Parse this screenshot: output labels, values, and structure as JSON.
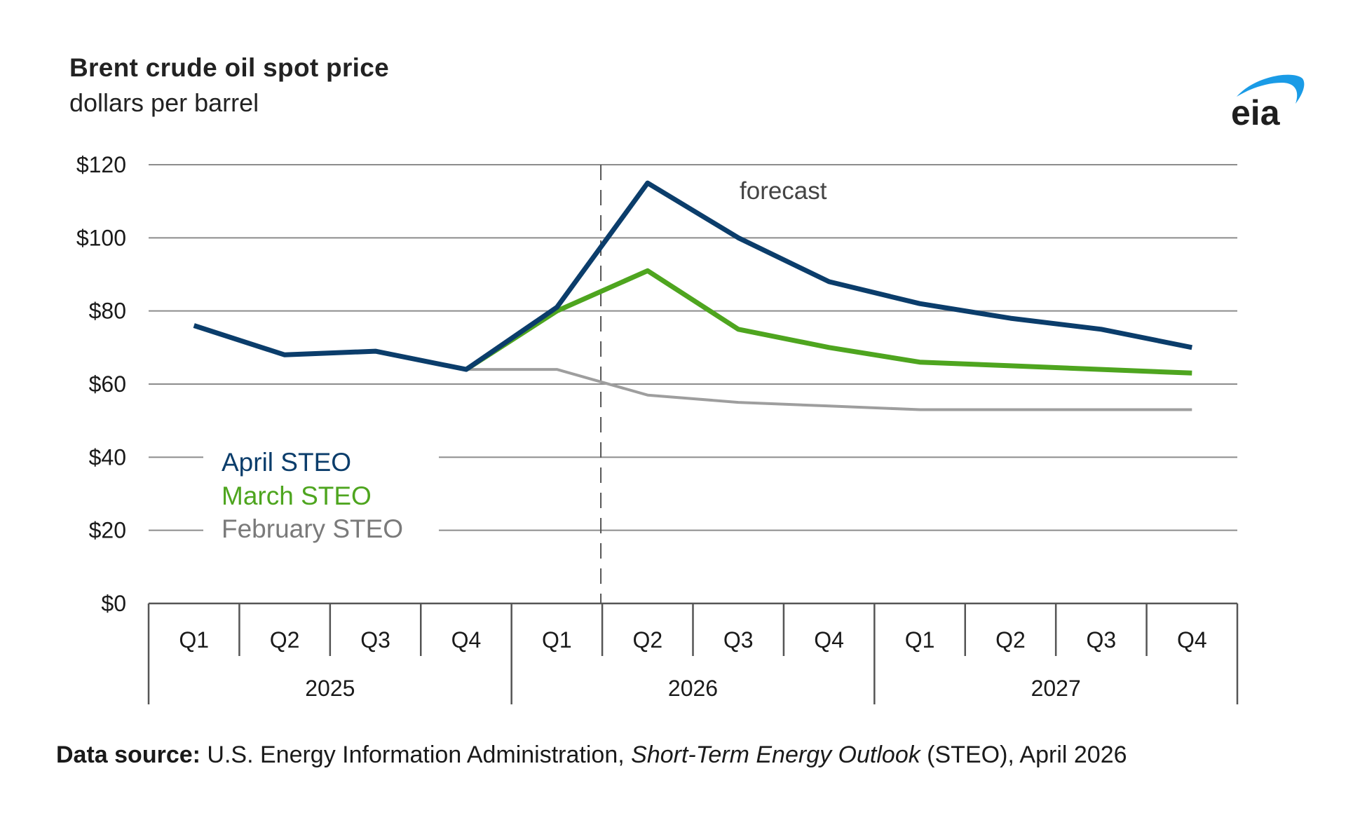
{
  "header": {
    "title": "Brent crude oil spot price",
    "subtitle": "dollars per barrel",
    "logo_text": "eia",
    "logo_colors": {
      "text": "#1f1f1f",
      "swoosh": "#1a9be6"
    }
  },
  "footer": {
    "source_label": "Data source:",
    "source_text_1": " U.S. Energy Information Administration, ",
    "source_italic": "Short-Term Energy Outlook",
    "source_text_2": " (STEO), April 2026"
  },
  "chart_data": {
    "type": "line",
    "title": "Brent crude oil spot price",
    "subtitle": "dollars per barrel",
    "xlabel": "",
    "ylabel": "dollars per barrel",
    "ylim": [
      0,
      120
    ],
    "yticks": [
      0,
      20,
      40,
      60,
      80,
      100,
      120
    ],
    "ytick_labels": [
      "$0",
      "$20",
      "$40",
      "$60",
      "$80",
      "$100",
      "$120"
    ],
    "grid": true,
    "categories": [
      "Q1",
      "Q2",
      "Q3",
      "Q4",
      "Q1",
      "Q2",
      "Q3",
      "Q4",
      "Q1",
      "Q2",
      "Q3",
      "Q4"
    ],
    "year_groups": [
      {
        "label": "2025",
        "quarters": 4
      },
      {
        "label": "2026",
        "quarters": 4
      },
      {
        "label": "2027",
        "quarters": 4
      }
    ],
    "forecast_divider_after_index": 4,
    "annotation": "forecast",
    "legend_position": "left-middle",
    "series": [
      {
        "name": "April STEO",
        "color": "#0b3d6b",
        "values": [
          76,
          68,
          69,
          64,
          81,
          115,
          100,
          88,
          82,
          78,
          75,
          70
        ]
      },
      {
        "name": "March STEO",
        "color": "#4ea51f",
        "values": [
          null,
          null,
          null,
          64,
          80,
          91,
          75,
          70,
          66,
          65,
          64,
          63
        ]
      },
      {
        "name": "February STEO",
        "color": "#7f7f7f",
        "values": [
          null,
          null,
          null,
          64,
          64,
          57,
          55,
          54,
          53,
          53,
          53,
          53
        ]
      }
    ]
  }
}
